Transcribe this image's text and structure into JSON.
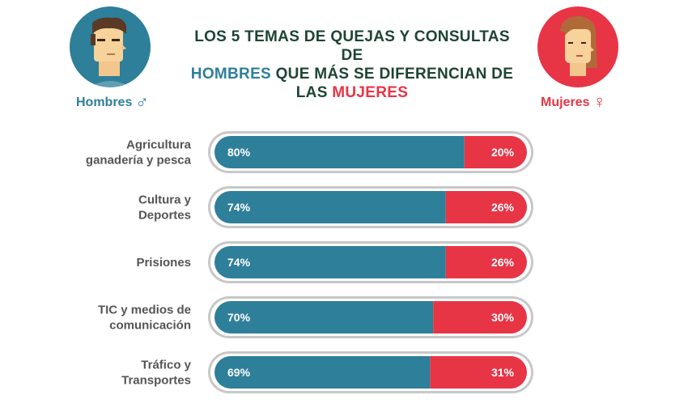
{
  "title": {
    "line1": "LOS 5 TEMAS DE QUEJAS Y CONSULTAS DE",
    "line2_highlight": "HOMBRES",
    "line2_rest": " QUE MÁS SE DIFERENCIAN DE",
    "line3_prefix": "LAS ",
    "line3_highlight": "MUJERES"
  },
  "legend": {
    "men": {
      "label": "Hombres",
      "symbol": "♂",
      "icon": "man-avatar-icon"
    },
    "women": {
      "label": "Mujeres",
      "symbol": "♀",
      "icon": "woman-avatar-icon"
    }
  },
  "colors": {
    "men": "#2e7f99",
    "women": "#e83546",
    "title": "#1e4434",
    "label": "#555555",
    "track": "#c8c8c8",
    "men_avatar_bg": "#2e7f99",
    "women_avatar_bg": "#e83546"
  },
  "chart_data": {
    "type": "bar",
    "stacked": true,
    "orientation": "horizontal",
    "categories": [
      [
        "Agricultura",
        "ganadería y  pesca"
      ],
      [
        "Cultura y",
        "Deportes"
      ],
      [
        "Prisiones"
      ],
      [
        "TIC y medios de",
        "comunicación"
      ],
      [
        "Tráfico y",
        "Transportes"
      ]
    ],
    "series": [
      {
        "name": "Hombres",
        "values": [
          80,
          74,
          74,
          70,
          69
        ],
        "labels": [
          "80%",
          "74%",
          "74%",
          "70%",
          "69%"
        ]
      },
      {
        "name": "Mujeres",
        "values": [
          20,
          26,
          26,
          30,
          31
        ],
        "labels": [
          "20%",
          "26%",
          "26%",
          "30%",
          "31%"
        ]
      }
    ],
    "xlim": [
      0,
      100
    ],
    "grid": false
  }
}
